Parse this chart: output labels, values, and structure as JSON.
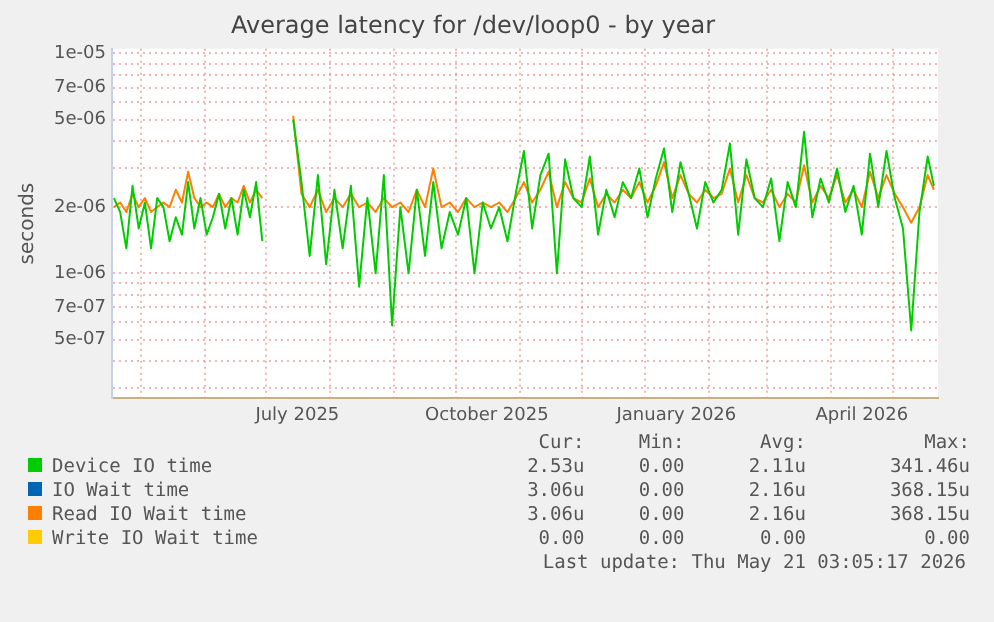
{
  "chart_data": {
    "type": "line",
    "title": "Average latency for /dev/loop0 - by year",
    "ylabel": "seconds",
    "log": true,
    "grid": true,
    "legend": "bottom",
    "marker": "none",
    "line_style": "solid",
    "ylim": [
      2.7e-07,
      1.05e-05
    ],
    "yticks": [
      {
        "value": 3e-07,
        "label": null
      },
      {
        "value": 4e-07,
        "label": null
      },
      {
        "value": 5e-07,
        "label": "5e-07"
      },
      {
        "value": 6e-07,
        "label": null
      },
      {
        "value": 7e-07,
        "label": "7e-07"
      },
      {
        "value": 8e-07,
        "label": null
      },
      {
        "value": 9e-07,
        "label": null
      },
      {
        "value": 1e-06,
        "label": "1e-06"
      },
      {
        "value": 2e-06,
        "label": "2e-06"
      },
      {
        "value": 3e-06,
        "label": null
      },
      {
        "value": 4e-06,
        "label": null
      },
      {
        "value": 5e-06,
        "label": "5e-06"
      },
      {
        "value": 6e-06,
        "label": null
      },
      {
        "value": 7e-06,
        "label": "7e-06"
      },
      {
        "value": 8e-06,
        "label": null
      },
      {
        "value": 9e-06,
        "label": null
      },
      {
        "value": 1e-05,
        "label": "1e-05"
      }
    ],
    "xlim": [
      "2025-04-17",
      "2026-05-23"
    ],
    "xticks": [
      {
        "value": "2025-05-01",
        "label": null
      },
      {
        "value": "2025-06-01",
        "label": null
      },
      {
        "value": "2025-07-01",
        "label": null
      },
      {
        "value": "2025-08-01",
        "label": null
      },
      {
        "value": "2025-09-01",
        "label": null
      },
      {
        "value": "2025-10-01",
        "label": null
      },
      {
        "value": "2025-11-01",
        "label": null
      },
      {
        "value": "2025-12-01",
        "label": null
      },
      {
        "value": "2026-01-01",
        "label": null
      },
      {
        "value": "2026-02-01",
        "label": null
      },
      {
        "value": "2026-03-01",
        "label": null
      },
      {
        "value": "2026-04-01",
        "label": null
      },
      {
        "value": "2026-05-01",
        "label": null
      },
      {
        "value": "2025-07-16",
        "label": "July 2025"
      },
      {
        "value": "2025-10-16",
        "label": "October 2025"
      },
      {
        "value": "2026-01-16",
        "label": "January 2026"
      },
      {
        "value": "2026-04-16",
        "label": "April 2026"
      }
    ],
    "x": [
      "2025-04-18",
      "2025-04-21",
      "2025-04-24",
      "2025-04-27",
      "2025-04-30",
      "2025-05-03",
      "2025-05-06",
      "2025-05-09",
      "2025-05-12",
      "2025-05-15",
      "2025-05-18",
      "2025-05-21",
      "2025-05-24",
      "2025-05-27",
      "2025-05-30",
      "2025-06-02",
      "2025-06-05",
      "2025-06-08",
      "2025-06-11",
      "2025-06-14",
      "2025-06-17",
      "2025-06-20",
      "2025-06-23",
      "2025-06-26",
      "2025-06-29",
      "2025-07-06",
      "2025-07-14",
      "2025-07-18",
      "2025-07-22",
      "2025-07-26",
      "2025-07-30",
      "2025-08-03",
      "2025-08-07",
      "2025-08-11",
      "2025-08-15",
      "2025-08-19",
      "2025-08-23",
      "2025-08-27",
      "2025-08-31",
      "2025-09-04",
      "2025-09-08",
      "2025-09-12",
      "2025-09-16",
      "2025-09-20",
      "2025-09-24",
      "2025-09-28",
      "2025-10-02",
      "2025-10-06",
      "2025-10-10",
      "2025-10-14",
      "2025-10-18",
      "2025-10-22",
      "2025-10-26",
      "2025-10-30",
      "2025-11-03",
      "2025-11-07",
      "2025-11-11",
      "2025-11-15",
      "2025-11-19",
      "2025-11-23",
      "2025-11-27",
      "2025-12-01",
      "2025-12-05",
      "2025-12-09",
      "2025-12-13",
      "2025-12-17",
      "2025-12-21",
      "2025-12-25",
      "2025-12-29",
      "2026-01-02",
      "2026-01-06",
      "2026-01-10",
      "2026-01-14",
      "2026-01-18",
      "2026-01-22",
      "2026-01-26",
      "2026-01-30",
      "2026-02-03",
      "2026-02-07",
      "2026-02-11",
      "2026-02-15",
      "2026-02-19",
      "2026-02-23",
      "2026-02-27",
      "2026-03-03",
      "2026-03-07",
      "2026-03-11",
      "2026-03-15",
      "2026-03-19",
      "2026-03-23",
      "2026-03-27",
      "2026-03-31",
      "2026-04-04",
      "2026-04-08",
      "2026-04-12",
      "2026-04-16",
      "2026-04-20",
      "2026-04-24",
      "2026-04-28",
      "2026-05-02",
      "2026-05-06",
      "2026-05-10",
      "2026-05-14",
      "2026-05-18",
      "2026-05-21"
    ],
    "series": [
      {
        "name": "Device IO time",
        "color": "#00cc00",
        "values": [
          2.2e-06,
          1.9e-06,
          1.3e-06,
          2.5e-06,
          1.6e-06,
          2.1e-06,
          1.3e-06,
          2.2e-06,
          2e-06,
          1.4e-06,
          1.8e-06,
          1.5e-06,
          2.6e-06,
          1.6e-06,
          2.2e-06,
          1.5e-06,
          1.8e-06,
          2.3e-06,
          1.6e-06,
          2.2e-06,
          1.5e-06,
          2.4e-06,
          1.8e-06,
          2.6e-06,
          1.4e-06,
          null,
          5e-06,
          2.6e-06,
          1.2e-06,
          2.8e-06,
          1.1e-06,
          2.4e-06,
          1.3e-06,
          2.5e-06,
          8.7e-07,
          2.2e-06,
          1e-06,
          2.8e-06,
          5.8e-07,
          2e-06,
          1e-06,
          2.4e-06,
          1.2e-06,
          2.6e-06,
          1.3e-06,
          1.9e-06,
          1.5e-06,
          2.2e-06,
          1e-06,
          2.1e-06,
          1.6e-06,
          2e-06,
          1.4e-06,
          2.3e-06,
          3.6e-06,
          1.6e-06,
          2.8e-06,
          3.5e-06,
          1e-06,
          3.3e-06,
          2.2e-06,
          2e-06,
          3.4e-06,
          1.5e-06,
          2.4e-06,
          1.8e-06,
          2.6e-06,
          2.2e-06,
          3e-06,
          1.8e-06,
          2.7e-06,
          3.7e-06,
          1.9e-06,
          3.2e-06,
          2.3e-06,
          1.6e-06,
          2.6e-06,
          2.1e-06,
          2.4e-06,
          3.9e-06,
          1.5e-06,
          3.3e-06,
          2.2e-06,
          2e-06,
          2.7e-06,
          1.4e-06,
          2.6e-06,
          2e-06,
          4.4e-06,
          1.8e-06,
          2.7e-06,
          2.1e-06,
          3e-06,
          1.9e-06,
          2.5e-06,
          1.5e-06,
          3.5e-06,
          2e-06,
          3.6e-06,
          2.2e-06,
          1.6e-06,
          5.5e-07,
          1.9e-06,
          3.4e-06,
          2.5e-06
        ]
      },
      {
        "name": "IO Wait time",
        "color": "#0066b3",
        "values": [
          null,
          null,
          null,
          null,
          null,
          null,
          null,
          null,
          null,
          null,
          null,
          null,
          null,
          null,
          null,
          null,
          null,
          null,
          null,
          null,
          null,
          null,
          null,
          null,
          null,
          null,
          null,
          null,
          null,
          null,
          null,
          null,
          null,
          null,
          null,
          null,
          null,
          null,
          null,
          null,
          null,
          null,
          null,
          null,
          null,
          null,
          null,
          null,
          null,
          null,
          null,
          null,
          null,
          null,
          null,
          null,
          null,
          null,
          null,
          null,
          null,
          null,
          null,
          null,
          null,
          null,
          null,
          null,
          null,
          null,
          null,
          null,
          null,
          null,
          null,
          null,
          null,
          null,
          null,
          null,
          null,
          null,
          null,
          null,
          null,
          null,
          null,
          null,
          null,
          null,
          null,
          null,
          null,
          null,
          null,
          null,
          null,
          null,
          null,
          null,
          null,
          null,
          null,
          null,
          null
        ]
      },
      {
        "name": "Read IO Wait time",
        "color": "#ff8000",
        "values": [
          2e-06,
          2.1e-06,
          1.9e-06,
          2.3e-06,
          2e-06,
          2.2e-06,
          1.9e-06,
          2e-06,
          2.1e-06,
          2e-06,
          2.4e-06,
          2.1e-06,
          2.9e-06,
          2.2e-06,
          2e-06,
          2.1e-06,
          2e-06,
          2.3e-06,
          2e-06,
          2.2e-06,
          2.1e-06,
          2.5e-06,
          2.1e-06,
          2.4e-06,
          2.2e-06,
          null,
          5.2e-06,
          2.3e-06,
          2e-06,
          2.4e-06,
          1.9e-06,
          2.2e-06,
          2e-06,
          2.3e-06,
          2e-06,
          2.1e-06,
          1.9e-06,
          2.2e-06,
          2e-06,
          2.1e-06,
          1.9e-06,
          2.4e-06,
          2e-06,
          3e-06,
          2e-06,
          2.1e-06,
          1.9e-06,
          2.2e-06,
          2e-06,
          2.1e-06,
          2e-06,
          2.1e-06,
          1.9e-06,
          2.2e-06,
          2.6e-06,
          2.1e-06,
          2.4e-06,
          2.9e-06,
          2e-06,
          2.6e-06,
          2.2e-06,
          2.1e-06,
          2.7e-06,
          2e-06,
          2.3e-06,
          2.1e-06,
          2.4e-06,
          2.2e-06,
          2.6e-06,
          2.1e-06,
          2.5e-06,
          3.2e-06,
          2.2e-06,
          2.8e-06,
          2.3e-06,
          2.1e-06,
          2.4e-06,
          2.2e-06,
          2.3e-06,
          3e-06,
          2.1e-06,
          2.8e-06,
          2.2e-06,
          2.1e-06,
          2.4e-06,
          2e-06,
          2.3e-06,
          2.1e-06,
          3.1e-06,
          2.1e-06,
          2.5e-06,
          2.2e-06,
          2.8e-06,
          2.1e-06,
          2.4e-06,
          2e-06,
          2.9e-06,
          2.2e-06,
          2.8e-06,
          2.3e-06,
          2e-06,
          1.7e-06,
          2e-06,
          2.8e-06,
          2.4e-06
        ]
      },
      {
        "name": "Write IO Wait time",
        "color": "#ffcc00",
        "values": [
          null,
          null,
          null,
          null,
          null,
          null,
          null,
          null,
          null,
          null,
          null,
          null,
          null,
          null,
          null,
          null,
          null,
          null,
          null,
          null,
          null,
          null,
          null,
          null,
          null,
          null,
          null,
          null,
          null,
          null,
          null,
          null,
          null,
          null,
          null,
          null,
          null,
          null,
          null,
          null,
          null,
          null,
          null,
          null,
          null,
          null,
          null,
          null,
          null,
          null,
          null,
          null,
          null,
          null,
          null,
          null,
          null,
          null,
          null,
          null,
          null,
          null,
          null,
          null,
          null,
          null,
          null,
          null,
          null,
          null,
          null,
          null,
          null,
          null,
          null,
          null,
          null,
          null,
          null,
          null,
          null,
          null,
          null,
          null,
          null,
          null,
          null,
          null,
          null,
          null,
          null,
          null,
          null,
          null,
          null,
          null,
          null,
          null,
          null,
          null,
          null,
          null,
          null,
          null,
          null
        ]
      }
    ],
    "annotations": [
      "Cur:",
      "Min:",
      "Avg:",
      "Max:",
      "2.53u",
      "0.00",
      "2.11u",
      "341.46u",
      "3.06u",
      "0.00",
      "2.16u",
      "368.15u",
      "3.06u",
      "0.00",
      "2.16u",
      "368.15u",
      "0.00",
      "0.00",
      "0.00",
      "0.00",
      "Last update: Thu May 21 03:05:17 2026"
    ]
  }
}
